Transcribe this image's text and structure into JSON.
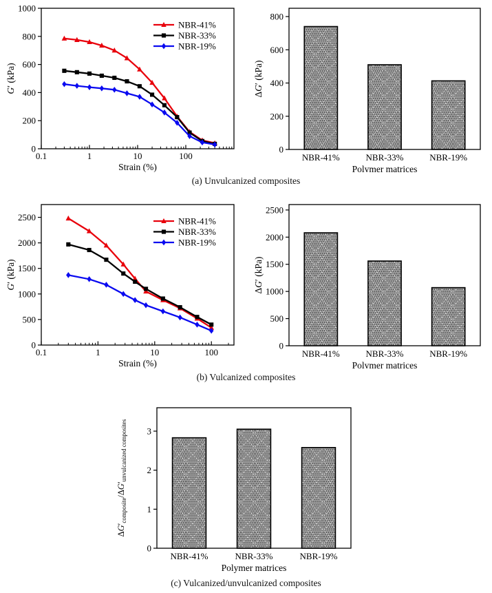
{
  "figure": {
    "background": "#ffffff"
  },
  "captions": {
    "a": "(a) Unvulcanized composites",
    "b": "(b) Vulcanized composites",
    "c": "(c) Vulcanized/unvulcanized composites"
  },
  "colors": {
    "nbr41": "#e8000b",
    "nbr33": "#000000",
    "nbr19": "#0a0af0",
    "bar_fill_base": "#9e9e9e",
    "bar_dot": "#333333",
    "bar_lattice": "#f2f2f2",
    "axis": "#000000"
  },
  "chart_data": [
    {
      "id": "a-line",
      "type": "line",
      "x_scale": "log",
      "xlabel": "Strain (%)",
      "ylabel": "G′ (kPa)",
      "ylabel_parts": [
        {
          "t": "G",
          "i": true
        },
        {
          "t": "′ (kPa)"
        }
      ],
      "xlim": [
        0.1,
        1000
      ],
      "ylim": [
        0,
        1000
      ],
      "x_ticks": [
        0.1,
        1,
        10,
        100
      ],
      "y_ticks": [
        0,
        200,
        400,
        600,
        800,
        1000
      ],
      "grid": false,
      "legend_position": "top-right",
      "x": [
        0.3,
        0.55,
        1.0,
        1.8,
        3.3,
        6.0,
        11,
        20,
        36,
        66,
        120,
        220,
        400
      ],
      "series": [
        {
          "name": "NBR-41%",
          "color": "#e8000b",
          "marker": "triangle",
          "values": [
            785,
            775,
            760,
            735,
            700,
            645,
            565,
            470,
            360,
            230,
            120,
            60,
            40
          ]
        },
        {
          "name": "NBR-33%",
          "color": "#000000",
          "marker": "square",
          "values": [
            555,
            545,
            535,
            520,
            505,
            480,
            445,
            385,
            310,
            225,
            115,
            55,
            35
          ]
        },
        {
          "name": "NBR-19%",
          "color": "#0a0af0",
          "marker": "diamond",
          "values": [
            460,
            448,
            438,
            430,
            420,
            395,
            370,
            315,
            258,
            185,
            90,
            45,
            30
          ]
        }
      ]
    },
    {
      "id": "a-bar",
      "type": "bar",
      "xlabel": "Polymer matrices",
      "ylabel": "ΔG′ (kPa)",
      "ylabel_parts": [
        {
          "t": "Δ"
        },
        {
          "t": "G",
          "i": true
        },
        {
          "t": "′ (kPa)"
        }
      ],
      "categories": [
        "NBR-41%",
        "NBR-33%",
        "NBR-19%"
      ],
      "values": [
        740,
        510,
        413
      ],
      "ylim": [
        0,
        850
      ],
      "y_ticks": [
        0,
        200,
        400,
        600,
        800
      ],
      "grid": false
    },
    {
      "id": "b-line",
      "type": "line",
      "x_scale": "log",
      "xlabel": "Strain (%)",
      "ylabel": "G′ (kPa)",
      "ylabel_parts": [
        {
          "t": "G",
          "i": true
        },
        {
          "t": "′ (kPa)"
        }
      ],
      "xlim": [
        0.1,
        250
      ],
      "ylim": [
        0,
        2750
      ],
      "x_ticks": [
        0.1,
        1,
        10,
        100
      ],
      "y_ticks": [
        0,
        500,
        1000,
        1500,
        2000,
        2500
      ],
      "grid": false,
      "legend_position": "top-right",
      "x": [
        0.3,
        0.7,
        1.4,
        2.8,
        4.5,
        7,
        14,
        28,
        56,
        100
      ],
      "series": [
        {
          "name": "NBR-41%",
          "color": "#e8000b",
          "marker": "triangle",
          "values": [
            2480,
            2230,
            1950,
            1580,
            1300,
            1050,
            880,
            720,
            520,
            340
          ]
        },
        {
          "name": "NBR-33%",
          "color": "#000000",
          "marker": "square",
          "values": [
            1970,
            1860,
            1670,
            1400,
            1240,
            1100,
            910,
            740,
            550,
            400
          ]
        },
        {
          "name": "NBR-19%",
          "color": "#0a0af0",
          "marker": "diamond",
          "values": [
            1370,
            1290,
            1180,
            1000,
            880,
            780,
            660,
            540,
            400,
            280
          ]
        }
      ]
    },
    {
      "id": "b-bar",
      "type": "bar",
      "xlabel": "Polymer matrices",
      "ylabel": "ΔG′ (kPa)",
      "ylabel_parts": [
        {
          "t": "Δ"
        },
        {
          "t": "G",
          "i": true
        },
        {
          "t": "′ (kPa)"
        }
      ],
      "categories": [
        "NBR-41%",
        "NBR-33%",
        "NBR-19%"
      ],
      "values": [
        2080,
        1560,
        1070
      ],
      "ylim": [
        0,
        2600
      ],
      "y_ticks": [
        0,
        500,
        1000,
        1500,
        2000,
        2500
      ],
      "grid": false
    },
    {
      "id": "c-bar",
      "type": "bar",
      "xlabel": "Polymer matrices",
      "ylabel": "ΔG′composite/ΔG′unvulcanized composites",
      "ylabel_parts": [
        {
          "t": "Δ"
        },
        {
          "t": "G",
          "i": true
        },
        {
          "t": "′"
        },
        {
          "t": "composite",
          "sub": true
        },
        {
          "t": "/Δ"
        },
        {
          "t": "G",
          "i": true
        },
        {
          "t": "′"
        },
        {
          "t": "unvulcanized composites",
          "sub": true
        }
      ],
      "categories": [
        "NBR-41%",
        "NBR-33%",
        "NBR-19%"
      ],
      "values": [
        2.83,
        3.05,
        2.58
      ],
      "ylim": [
        0,
        3.6
      ],
      "y_ticks": [
        0,
        1,
        2,
        3
      ],
      "grid": false
    }
  ]
}
